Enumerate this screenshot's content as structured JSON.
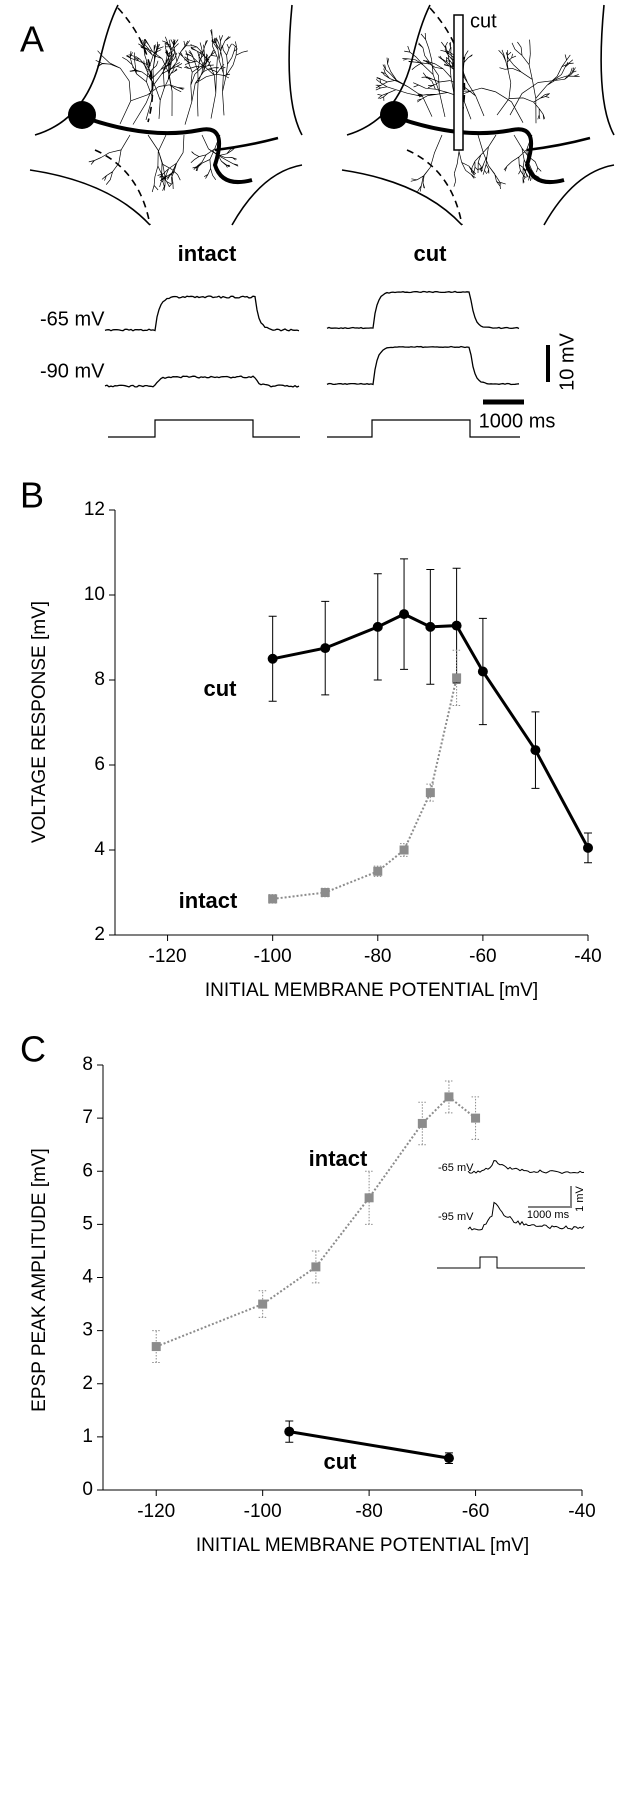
{
  "panel_a": {
    "panel": "A",
    "electrode_label": "cut",
    "conditions": [
      "intact",
      "cut"
    ],
    "trace_labels": [
      "-65 mV",
      "-90 mV"
    ],
    "scale_v": "10 mV",
    "scale_t": "1000 ms"
  },
  "chart_data": [
    {
      "type": "line",
      "panel": "B",
      "x_label": "INITIAL MEMBRANE POTENTIAL [mV]",
      "y_label": "VOLTAGE RESPONSE [mV]",
      "xlim": [
        -130,
        -40
      ],
      "ylim": [
        2,
        12
      ],
      "xticks": [
        -120,
        -100,
        -80,
        -60,
        -40
      ],
      "yticks": [
        2,
        4,
        6,
        8,
        10,
        12
      ],
      "series": [
        {
          "name": "cut",
          "color": "#000000",
          "line_style": "solid",
          "marker": "circle",
          "x": [
            -100,
            -90,
            -80,
            -75,
            -70,
            -65,
            -60,
            -50,
            -40
          ],
          "values": [
            8.5,
            8.75,
            9.25,
            9.55,
            9.25,
            9.28,
            8.2,
            6.35,
            4.05
          ],
          "errors": [
            1.0,
            1.1,
            1.25,
            1.3,
            1.35,
            1.35,
            1.25,
            0.9,
            0.35
          ]
        },
        {
          "name": "intact",
          "color": "#8c8c8c",
          "line_style": "dotted",
          "marker": "square",
          "x": [
            -100,
            -90,
            -80,
            -75,
            -70,
            -65
          ],
          "values": [
            2.85,
            3.0,
            3.5,
            4.0,
            5.35,
            8.05
          ],
          "errors": [
            0.1,
            0.1,
            0.12,
            0.15,
            0.2,
            0.65
          ]
        }
      ]
    },
    {
      "type": "line",
      "panel": "C",
      "x_label": "INITIAL MEMBRANE POTENTIAL [mV]",
      "y_label": "EPSP PEAK AMPLITUDE [mV]",
      "xlim": [
        -130,
        -40
      ],
      "ylim": [
        0,
        8
      ],
      "xticks": [
        -120,
        -100,
        -80,
        -60,
        -40
      ],
      "yticks": [
        0,
        1,
        2,
        3,
        4,
        5,
        6,
        7,
        8
      ],
      "series": [
        {
          "name": "cut",
          "color": "#000000",
          "line_style": "solid",
          "marker": "circle",
          "x": [
            -95,
            -65
          ],
          "values": [
            1.1,
            0.6
          ],
          "errors": [
            0.2,
            0.1
          ]
        },
        {
          "name": "intact",
          "color": "#8c8c8c",
          "line_style": "dotted",
          "marker": "square",
          "x": [
            -120,
            -100,
            -90,
            -80,
            -70,
            -65,
            -60
          ],
          "values": [
            2.7,
            3.5,
            4.2,
            5.5,
            6.9,
            7.4,
            7.0
          ],
          "errors": [
            0.3,
            0.25,
            0.3,
            0.5,
            0.4,
            0.3,
            0.4
          ]
        }
      ],
      "inset": {
        "trace_labels": [
          "-65 mV",
          "-95 mV"
        ],
        "scale_v": "1 mV",
        "scale_t": "1000 ms"
      }
    }
  ]
}
